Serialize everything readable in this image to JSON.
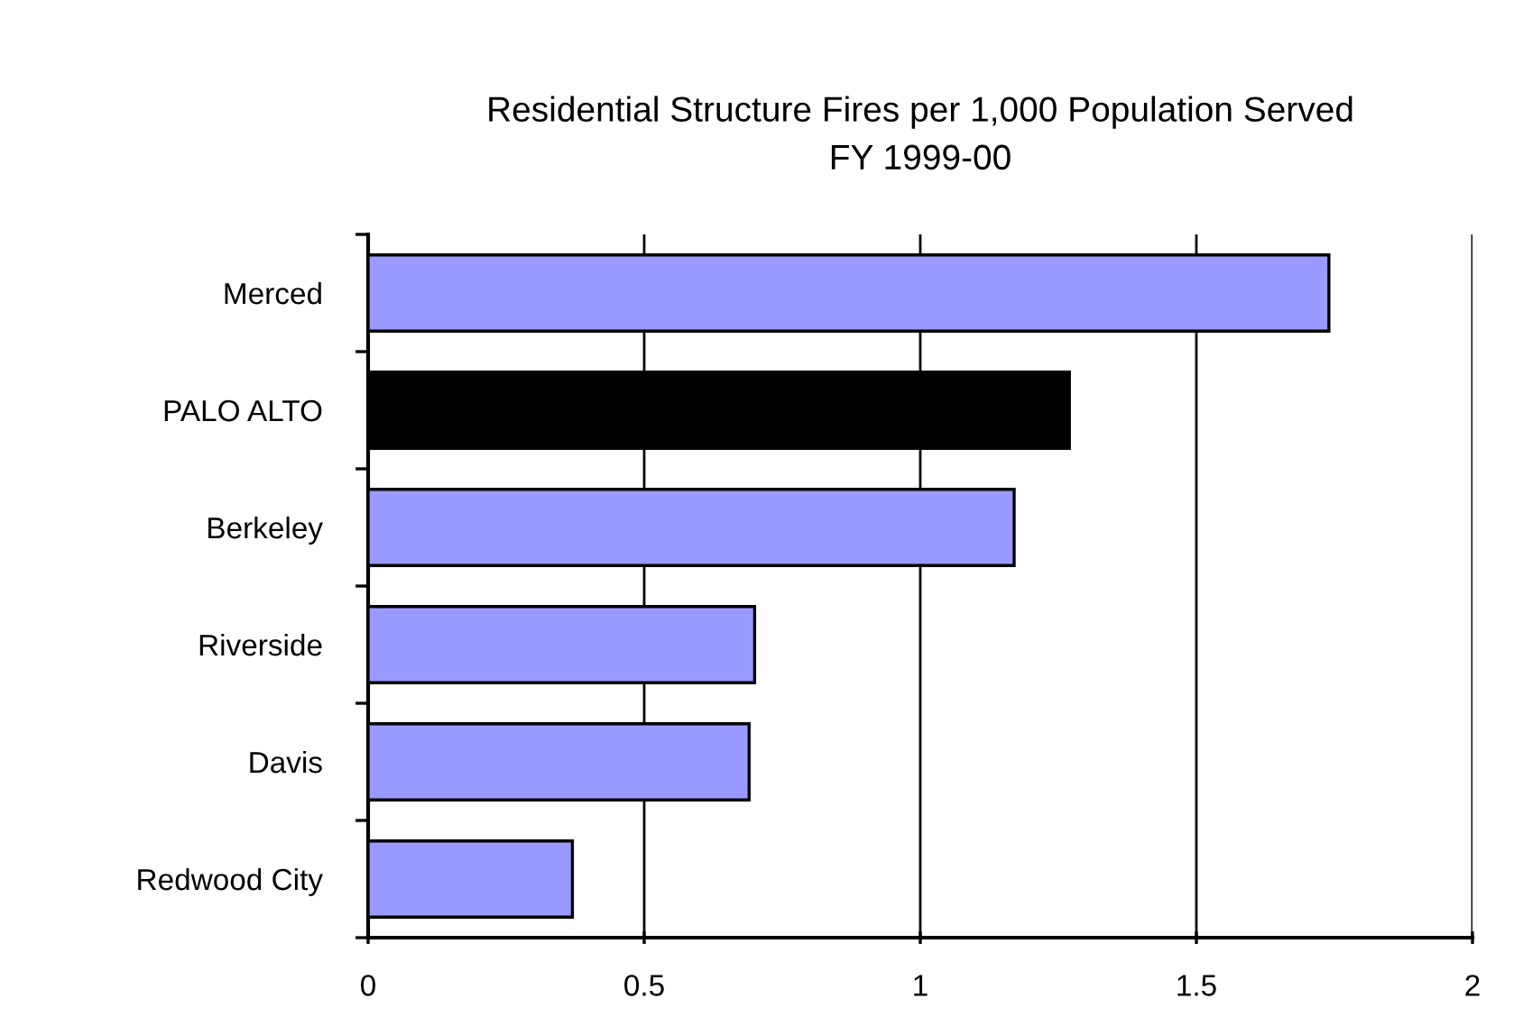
{
  "chart_data": {
    "type": "bar",
    "orientation": "horizontal",
    "title": "Residential Structure Fires per 1,000 Population Served\nFY 1999-00",
    "categories": [
      "Merced",
      "PALO ALTO",
      "Berkeley",
      "Riverside",
      "Davis",
      "Redwood City"
    ],
    "values": [
      1.74,
      1.27,
      1.17,
      0.7,
      0.69,
      0.37
    ],
    "colors": [
      "#9999ff",
      "#000000",
      "#9999ff",
      "#9999ff",
      "#9999ff",
      "#9999ff"
    ],
    "xlim": [
      0,
      2
    ],
    "xticks": [
      0,
      0.5,
      1,
      1.5,
      2
    ],
    "grid": "x"
  }
}
